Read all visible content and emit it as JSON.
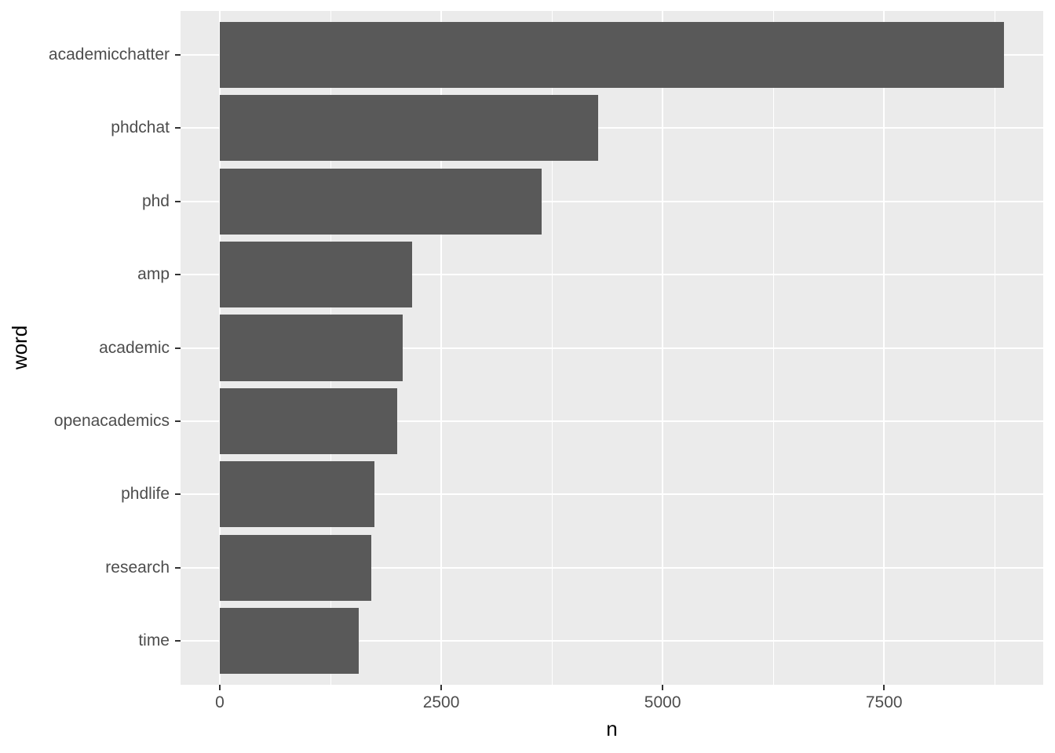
{
  "chart_data": {
    "type": "bar",
    "orientation": "horizontal",
    "title": "",
    "xlabel": "n",
    "ylabel": "word",
    "categories": [
      "academicchatter",
      "phdchat",
      "phd",
      "amp",
      "academic",
      "openacademics",
      "phdlife",
      "research",
      "time"
    ],
    "values": [
      8850,
      4270,
      3630,
      2175,
      2065,
      2000,
      1745,
      1715,
      1565
    ],
    "x_ticks": [
      0,
      2500,
      5000,
      7500
    ],
    "x_minor_ticks": [
      1250,
      3750,
      6250,
      8750
    ],
    "xlim": [
      -443,
      9297
    ],
    "grid": "on",
    "legend": "none",
    "theme": "ggplot2-grey",
    "colors": {
      "bar_fill": "#595959",
      "panel_background": "#EBEBEB",
      "gridline": "#FFFFFF",
      "axis_text": "#4D4D4D",
      "tick_mark": "#333333",
      "axis_title": "#000000",
      "figure_background": "#FFFFFF"
    }
  }
}
